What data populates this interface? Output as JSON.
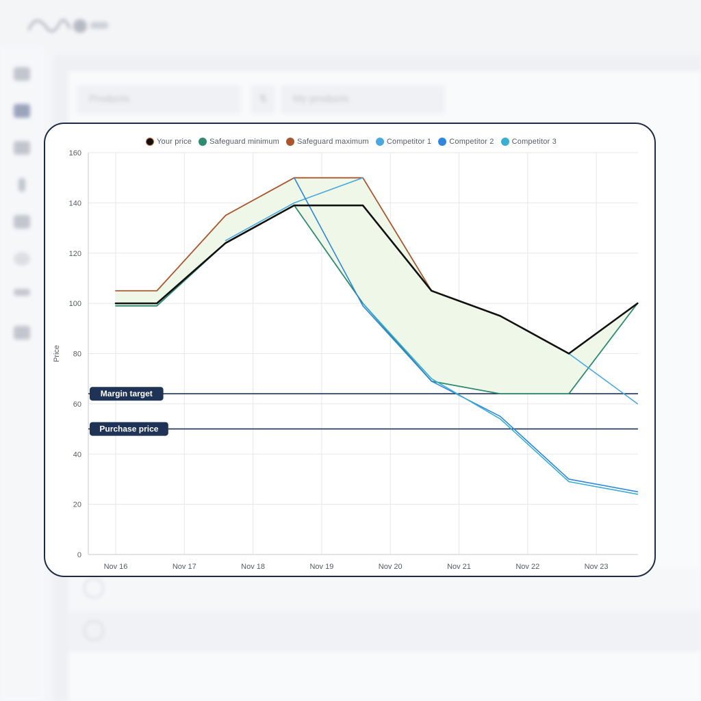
{
  "background": {
    "select_1": "Products",
    "select_2": "My products"
  },
  "chart_data": {
    "type": "line",
    "x": [
      "Nov 16",
      "Nov 17",
      "Nov 18",
      "Nov 19",
      "Nov 20",
      "Nov 21",
      "Nov 22",
      "Nov 23"
    ],
    "xlabel": "",
    "ylabel": "Price",
    "ylim": [
      0,
      160
    ],
    "yticks": [
      0,
      20,
      40,
      60,
      80,
      100,
      120,
      140,
      160
    ],
    "grid": true,
    "legend_position": "top",
    "series": [
      {
        "name": "Your price",
        "color": "#111111",
        "border": "#c06a3a",
        "width": 2.6,
        "points": [
          [
            0,
            100
          ],
          [
            0.6,
            100
          ],
          [
            1.6,
            124
          ],
          [
            2.6,
            139
          ],
          [
            3.6,
            139
          ],
          [
            4.6,
            105
          ],
          [
            5.6,
            95
          ],
          [
            6.6,
            80
          ],
          [
            7.6,
            100
          ]
        ]
      },
      {
        "name": "Safeguard minimum",
        "color": "#2e8b6e",
        "width": 1.8,
        "points": [
          [
            0,
            99
          ],
          [
            0.6,
            99
          ],
          [
            1.6,
            124
          ],
          [
            2.6,
            139
          ],
          [
            3.6,
            100
          ],
          [
            4.6,
            69
          ],
          [
            5.6,
            64
          ],
          [
            6.6,
            64
          ],
          [
            7.6,
            100
          ]
        ]
      },
      {
        "name": "Safeguard maximum",
        "color": "#a9552e",
        "width": 1.8,
        "points": [
          [
            0,
            105
          ],
          [
            0.6,
            105
          ],
          [
            1.6,
            135
          ],
          [
            2.6,
            150
          ],
          [
            3.6,
            150
          ],
          [
            4.6,
            105
          ]
        ]
      },
      {
        "name": "Competitor 1",
        "color": "#4aa8e0",
        "width": 1.6,
        "points": [
          [
            1.6,
            125
          ],
          [
            2.6,
            140
          ],
          [
            3.6,
            150
          ]
        ]
      },
      {
        "name": "Competitor 2",
        "color": "#2f86de",
        "width": 1.6,
        "points": [
          [
            2.6,
            150
          ],
          [
            3.6,
            99
          ],
          [
            4.6,
            69
          ],
          [
            5.6,
            55
          ],
          [
            6.6,
            30
          ],
          [
            7.6,
            25
          ]
        ]
      },
      {
        "name": "Competitor 3",
        "color": "#3aaed0",
        "width": 1.6,
        "points": [
          [
            3.6,
            100
          ],
          [
            4.6,
            70
          ],
          [
            5.6,
            54
          ],
          [
            6.6,
            29
          ],
          [
            7.6,
            24
          ]
        ]
      }
    ],
    "competitor_tail": {
      "color": "#4aa8e0",
      "points": [
        [
          6.6,
          80
        ],
        [
          7.6,
          60
        ]
      ]
    },
    "band_fill": "#eef7e8",
    "reference_lines": [
      {
        "label": "Margin target",
        "value": 64,
        "color": "#1e3355"
      },
      {
        "label": "Purchase price",
        "value": 50,
        "color": "#1e3355"
      }
    ]
  }
}
